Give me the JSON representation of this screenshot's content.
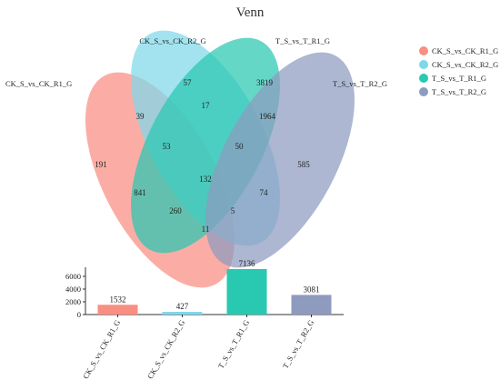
{
  "chart_data": [
    {
      "type": "venn",
      "title": "Venn",
      "sets": [
        {
          "name": "CK_S_vs_CK_R1_G",
          "color": "#f98e82"
        },
        {
          "name": "CK_S_vs_CK_R2_G",
          "color": "#7fd8ea"
        },
        {
          "name": "T_S_vs_T_R1_G",
          "color": "#29c8b1"
        },
        {
          "name": "T_S_vs_T_R2_G",
          "color": "#8e9bbf"
        }
      ],
      "regions": [
        {
          "sets": [
            "CK_S_vs_CK_R2_G"
          ],
          "value": 57
        },
        {
          "sets": [
            "T_S_vs_T_R1_G"
          ],
          "value": 3819
        },
        {
          "sets": [
            "CK_S_vs_CK_R1_G",
            "CK_S_vs_CK_R2_G"
          ],
          "value": 39
        },
        {
          "sets": [
            "CK_S_vs_CK_R2_G",
            "T_S_vs_T_R1_G"
          ],
          "value": 17
        },
        {
          "sets": [
            "T_S_vs_T_R1_G",
            "T_S_vs_T_R2_G"
          ],
          "value": 1964
        },
        {
          "sets": [
            "CK_S_vs_CK_R1_G"
          ],
          "value": 191
        },
        {
          "sets": [
            "CK_S_vs_CK_R1_G",
            "CK_S_vs_CK_R2_G",
            "T_S_vs_T_R1_G"
          ],
          "value": 53
        },
        {
          "sets": [
            "CK_S_vs_CK_R2_G",
            "T_S_vs_T_R1_G",
            "T_S_vs_T_R2_G"
          ],
          "value": 50
        },
        {
          "sets": [
            "T_S_vs_T_R2_G"
          ],
          "value": 585
        },
        {
          "sets": [
            "CK_S_vs_CK_R1_G",
            "CK_S_vs_CK_R2_G",
            "T_S_vs_T_R1_G",
            "T_S_vs_T_R2_G"
          ],
          "value": 132
        },
        {
          "sets": [
            "CK_S_vs_CK_R1_G",
            "T_S_vs_T_R1_G"
          ],
          "value": 841
        },
        {
          "sets": [
            "CK_S_vs_CK_R2_G",
            "T_S_vs_T_R2_G"
          ],
          "value": 74
        },
        {
          "sets": [
            "CK_S_vs_CK_R1_G",
            "T_S_vs_T_R1_G",
            "T_S_vs_T_R2_G"
          ],
          "value": 260
        },
        {
          "sets": [
            "CK_S_vs_CK_R1_G",
            "CK_S_vs_CK_R2_G",
            "T_S_vs_T_R2_G"
          ],
          "value": 5
        },
        {
          "sets": [
            "CK_S_vs_CK_R1_G",
            "T_S_vs_T_R2_G"
          ],
          "value": 11
        }
      ]
    },
    {
      "type": "bar",
      "categories": [
        "CK_S_vs_CK_R1_G",
        "CK_S_vs_CK_R2_G",
        "T_S_vs_T_R1_G",
        "T_S_vs_T_R2_G"
      ],
      "values": [
        1532,
        427,
        7136,
        3081
      ],
      "colors": [
        "#f98e82",
        "#7fd8ea",
        "#29c8b1",
        "#8e9bbf"
      ],
      "ylim": [
        0,
        7136
      ],
      "yticks": [
        0,
        2000,
        4000,
        6000
      ],
      "data_labels": true,
      "legend": "right"
    }
  ]
}
